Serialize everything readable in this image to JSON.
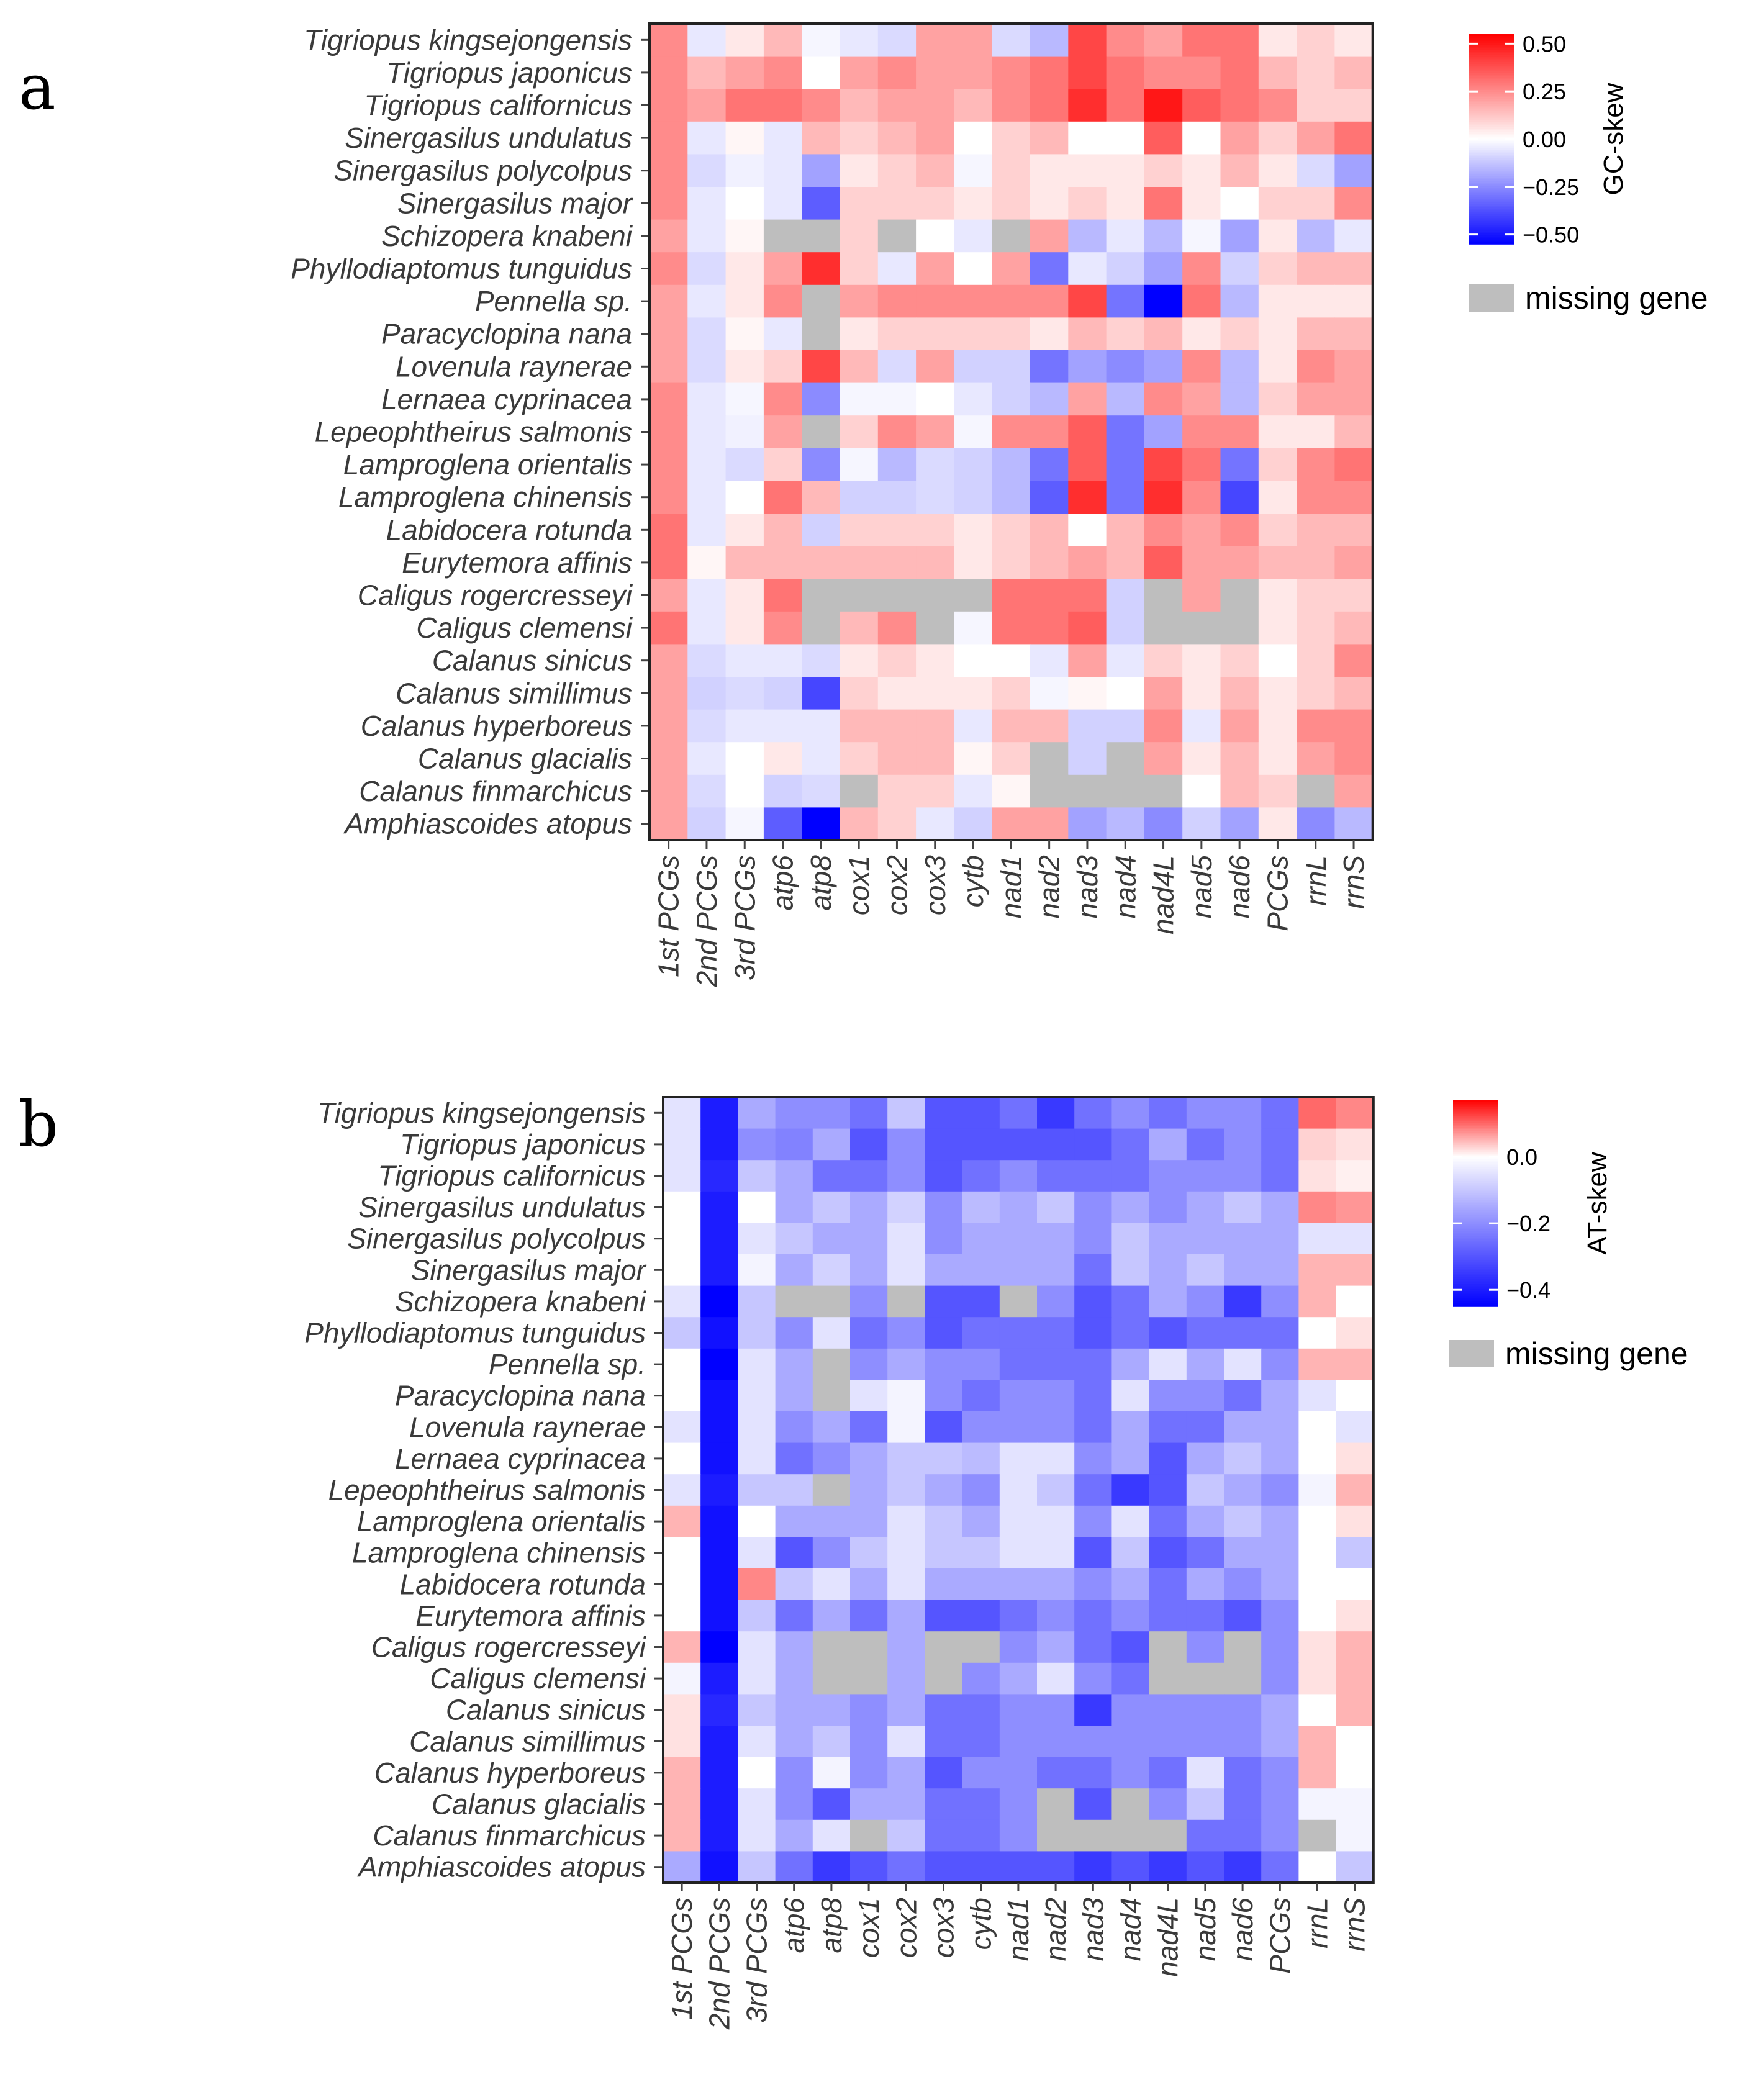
{
  "chart_data": [
    {
      "type": "heatmap",
      "panel_label": "a",
      "legend_title": "GC-skew",
      "missing_label": "missing gene",
      "colors": {
        "low": "#0000ff",
        "mid": "#ffffff",
        "high": "#ff0000",
        "missing": "#bebebe"
      },
      "scale_limits": [
        -0.55,
        0.55
      ],
      "ticks": [
        0.5,
        0.25,
        0.0,
        -0.25,
        -0.5
      ],
      "tick_labels": [
        "0.50",
        "0.25",
        "0.00",
        "−0.25",
        "−0.50"
      ],
      "columns": [
        "1st PCGs",
        "2nd PCGs",
        "3rd PCGs",
        "atp6",
        "atp8",
        "cox1",
        "cox2",
        "cox3",
        "cytb",
        "nad1",
        "nad2",
        "nad3",
        "nad4",
        "nad4L",
        "nad5",
        "nad6",
        "PCGs",
        "rrnL",
        "rrnS"
      ],
      "rows": [
        "Tigriopus kingsejongensis",
        "Tigriopus japonicus",
        "Tigriopus californicus",
        "Sinergasilus undulatus",
        "Sinergasilus polycolpus",
        "Sinergasilus major",
        "Schizopera knabeni",
        "Phyllodiaptomus tunguidus",
        "Pennella sp.",
        "Paracyclopina nana",
        "Lovenula raynerae",
        "Lernaea cyprinacea",
        "Lepeophtheirus salmonis",
        "Lamproglena orientalis",
        "Lamproglena chinensis",
        "Labidocera rotunda",
        "Eurytemora affinis",
        "Caligus rogercresseyi",
        "Caligus clemensi",
        "Calanus sinicus",
        "Calanus simillimus",
        "Calanus hyperboreus",
        "Calanus glacialis",
        "Calanus finmarchicus",
        "Amphiascoides atopus"
      ],
      "values": [
        [
          0.25,
          -0.05,
          0.05,
          0.15,
          -0.02,
          -0.05,
          -0.08,
          0.2,
          0.2,
          -0.08,
          -0.15,
          0.4,
          0.25,
          0.2,
          0.3,
          0.3,
          0.05,
          0.1,
          0.05
        ],
        [
          0.25,
          0.15,
          0.2,
          0.25,
          0.0,
          0.2,
          0.25,
          0.2,
          0.2,
          0.25,
          0.3,
          0.4,
          0.3,
          0.25,
          0.25,
          0.3,
          0.15,
          0.1,
          0.15
        ],
        [
          0.25,
          0.2,
          0.3,
          0.3,
          0.25,
          0.15,
          0.2,
          0.2,
          0.15,
          0.25,
          0.3,
          0.45,
          0.3,
          0.5,
          0.35,
          0.3,
          0.25,
          0.1,
          0.1
        ],
        [
          0.25,
          -0.05,
          0.02,
          -0.05,
          0.15,
          0.1,
          0.15,
          0.2,
          0.0,
          0.1,
          0.15,
          0.0,
          0.0,
          0.35,
          0.0,
          0.2,
          0.1,
          0.2,
          0.3
        ],
        [
          0.25,
          -0.08,
          -0.03,
          -0.05,
          -0.2,
          0.05,
          0.1,
          0.15,
          -0.02,
          0.1,
          0.05,
          0.05,
          0.05,
          0.1,
          0.05,
          0.15,
          0.05,
          -0.08,
          -0.2
        ],
        [
          0.25,
          -0.05,
          0.0,
          -0.05,
          -0.35,
          0.1,
          0.1,
          0.1,
          0.05,
          0.1,
          0.05,
          0.1,
          0.05,
          0.3,
          0.05,
          0.0,
          0.1,
          0.1,
          0.25
        ],
        [
          0.2,
          -0.05,
          0.02,
          null,
          null,
          0.1,
          null,
          0.0,
          -0.05,
          null,
          0.2,
          -0.15,
          -0.05,
          -0.15,
          -0.02,
          -0.2,
          0.05,
          -0.15,
          -0.05
        ],
        [
          0.25,
          -0.08,
          0.05,
          0.2,
          0.45,
          0.1,
          -0.05,
          0.2,
          0.0,
          0.2,
          -0.3,
          -0.05,
          -0.1,
          -0.2,
          0.25,
          -0.1,
          0.1,
          0.15,
          0.15
        ],
        [
          0.2,
          -0.05,
          0.05,
          0.25,
          null,
          0.2,
          0.25,
          0.25,
          0.25,
          0.25,
          0.25,
          0.4,
          -0.3,
          -0.55,
          0.3,
          -0.15,
          0.05,
          0.05,
          0.05
        ],
        [
          0.2,
          -0.08,
          0.02,
          -0.05,
          null,
          0.05,
          0.1,
          0.1,
          0.1,
          0.1,
          0.05,
          0.15,
          0.1,
          0.15,
          0.05,
          0.1,
          0.05,
          0.15,
          0.15
        ],
        [
          0.2,
          -0.08,
          0.05,
          0.1,
          0.4,
          0.15,
          -0.08,
          0.2,
          -0.1,
          -0.1,
          -0.3,
          -0.2,
          -0.25,
          -0.2,
          0.25,
          -0.15,
          0.05,
          0.25,
          0.2
        ],
        [
          0.25,
          -0.05,
          -0.02,
          0.25,
          -0.25,
          -0.02,
          -0.02,
          0.0,
          -0.05,
          -0.1,
          -0.15,
          0.2,
          -0.15,
          0.25,
          0.2,
          -0.15,
          0.1,
          0.2,
          0.2
        ],
        [
          0.25,
          -0.05,
          -0.03,
          0.2,
          null,
          0.1,
          0.25,
          0.2,
          -0.02,
          0.25,
          0.25,
          0.35,
          -0.3,
          -0.2,
          0.25,
          0.25,
          0.05,
          0.05,
          0.15
        ],
        [
          0.25,
          -0.05,
          -0.08,
          0.1,
          -0.25,
          -0.02,
          -0.15,
          -0.08,
          -0.1,
          -0.15,
          -0.3,
          0.35,
          -0.3,
          0.4,
          0.3,
          -0.3,
          0.1,
          0.25,
          0.3
        ],
        [
          0.25,
          -0.05,
          0.0,
          0.3,
          0.15,
          -0.1,
          -0.1,
          -0.08,
          -0.1,
          -0.15,
          -0.35,
          0.45,
          -0.3,
          0.45,
          0.25,
          -0.4,
          0.05,
          0.25,
          0.25
        ],
        [
          0.3,
          -0.05,
          0.05,
          0.15,
          -0.1,
          0.1,
          0.1,
          0.1,
          0.05,
          0.1,
          0.15,
          0.0,
          0.15,
          0.25,
          0.2,
          0.25,
          0.1,
          0.15,
          0.15
        ],
        [
          0.3,
          0.02,
          0.15,
          0.15,
          0.15,
          0.15,
          0.15,
          0.15,
          0.05,
          0.1,
          0.15,
          0.2,
          0.15,
          0.35,
          0.2,
          0.2,
          0.15,
          0.15,
          0.2
        ],
        [
          0.2,
          -0.05,
          0.05,
          0.3,
          null,
          null,
          null,
          null,
          null,
          0.3,
          0.3,
          0.3,
          -0.1,
          null,
          0.2,
          null,
          0.05,
          0.1,
          0.1
        ],
        [
          0.3,
          -0.05,
          0.05,
          0.25,
          null,
          0.15,
          0.25,
          null,
          -0.02,
          0.3,
          0.3,
          0.35,
          -0.1,
          null,
          null,
          null,
          0.05,
          0.1,
          0.15
        ],
        [
          0.2,
          -0.08,
          -0.05,
          -0.05,
          -0.08,
          0.05,
          0.1,
          0.05,
          0.0,
          0.0,
          -0.05,
          0.2,
          -0.05,
          0.1,
          0.05,
          0.1,
          0.0,
          0.1,
          0.25
        ],
        [
          0.2,
          -0.1,
          -0.08,
          -0.1,
          -0.4,
          0.1,
          0.05,
          0.05,
          0.05,
          0.1,
          -0.02,
          0.02,
          0.0,
          0.2,
          0.05,
          0.15,
          0.05,
          0.1,
          0.15
        ],
        [
          0.2,
          -0.08,
          -0.05,
          -0.05,
          -0.05,
          0.15,
          0.15,
          0.15,
          -0.05,
          0.15,
          0.15,
          -0.1,
          -0.1,
          0.25,
          -0.05,
          0.2,
          0.05,
          0.25,
          0.25
        ],
        [
          0.2,
          -0.05,
          0.0,
          0.05,
          -0.05,
          0.1,
          0.15,
          0.15,
          0.02,
          0.1,
          null,
          -0.1,
          null,
          0.2,
          0.05,
          0.15,
          0.05,
          0.2,
          0.25
        ],
        [
          0.2,
          -0.08,
          0.0,
          -0.1,
          -0.08,
          null,
          0.1,
          0.1,
          -0.05,
          0.02,
          null,
          null,
          null,
          null,
          0.0,
          0.15,
          0.1,
          null,
          0.2
        ],
        [
          0.2,
          -0.1,
          -0.02,
          -0.35,
          -0.6,
          0.15,
          0.1,
          -0.05,
          -0.1,
          0.2,
          0.2,
          -0.2,
          -0.15,
          -0.25,
          -0.1,
          -0.2,
          0.05,
          -0.25,
          -0.15
        ]
      ]
    },
    {
      "type": "heatmap",
      "panel_label": "b",
      "legend_title": "AT-skew",
      "missing_label": "missing gene",
      "colors": {
        "low": "#0000ff",
        "mid": "#ffffff",
        "high": "#ff0000",
        "missing": "#bebebe"
      },
      "scale_limits": [
        -0.45,
        0.17
      ],
      "ticks": [
        0.0,
        -0.2,
        -0.4
      ],
      "tick_labels": [
        "0.0",
        "−0.2",
        "−0.4"
      ],
      "columns": [
        "1st PCGs",
        "2nd PCGs",
        "3rd PCGs",
        "atp6",
        "atp8",
        "cox1",
        "cox2",
        "cox3",
        "cytb",
        "nad1",
        "nad2",
        "nad3",
        "nad4",
        "nad4L",
        "nad5",
        "nad6",
        "PCGs",
        "rrnL",
        "rrnS"
      ],
      "rows": [
        "Tigriopus kingsejongensis",
        "Tigriopus japonicus",
        "Tigriopus californicus",
        "Sinergasilus undulatus",
        "Sinergasilus polycolpus",
        "Sinergasilus major",
        "Schizopera knabeni",
        "Phyllodiaptomus tunguidus",
        "Pennella sp.",
        "Paracyclopina nana",
        "Lovenula raynerae",
        "Lernaea cyprinacea",
        "Lepeophtheirus salmonis",
        "Lamproglena orientalis",
        "Lamproglena chinensis",
        "Labidocera rotunda",
        "Eurytemora affinis",
        "Caligus rogercresseyi",
        "Caligus clemensi",
        "Calanus sinicus",
        "Calanus simillimus",
        "Calanus hyperboreus",
        "Calanus glacialis",
        "Calanus finmarchicus",
        "Amphiascoides atopus"
      ],
      "values": [
        [
          -0.05,
          -0.4,
          -0.15,
          -0.2,
          -0.2,
          -0.25,
          -0.1,
          -0.3,
          -0.3,
          -0.25,
          -0.35,
          -0.25,
          -0.2,
          -0.25,
          -0.2,
          -0.2,
          -0.25,
          0.1,
          0.08
        ],
        [
          -0.05,
          -0.4,
          -0.2,
          -0.22,
          -0.15,
          -0.3,
          -0.2,
          -0.3,
          -0.3,
          -0.3,
          -0.3,
          -0.3,
          -0.25,
          -0.15,
          -0.25,
          -0.2,
          -0.25,
          0.03,
          0.02
        ],
        [
          -0.05,
          -0.38,
          -0.1,
          -0.15,
          -0.25,
          -0.25,
          -0.2,
          -0.3,
          -0.25,
          -0.2,
          -0.25,
          -0.25,
          -0.25,
          -0.2,
          -0.2,
          -0.2,
          -0.25,
          0.02,
          0.01
        ],
        [
          0.0,
          -0.4,
          0.0,
          -0.15,
          -0.1,
          -0.15,
          -0.08,
          -0.2,
          -0.12,
          -0.15,
          -0.1,
          -0.2,
          -0.15,
          -0.2,
          -0.15,
          -0.1,
          -0.15,
          0.08,
          0.07
        ],
        [
          0.0,
          -0.4,
          -0.05,
          -0.1,
          -0.15,
          -0.15,
          -0.05,
          -0.2,
          -0.15,
          -0.15,
          -0.15,
          -0.2,
          -0.1,
          -0.15,
          -0.15,
          -0.15,
          -0.15,
          -0.05,
          -0.05
        ],
        [
          0.0,
          -0.4,
          -0.02,
          -0.15,
          -0.08,
          -0.15,
          -0.05,
          -0.15,
          -0.15,
          -0.15,
          -0.15,
          -0.25,
          -0.1,
          -0.15,
          -0.1,
          -0.15,
          -0.15,
          0.05,
          0.05
        ],
        [
          -0.05,
          -0.45,
          -0.1,
          null,
          null,
          -0.2,
          null,
          -0.3,
          -0.3,
          null,
          -0.2,
          -0.3,
          -0.25,
          -0.15,
          -0.2,
          -0.35,
          -0.2,
          0.05,
          0.0
        ],
        [
          -0.1,
          -0.42,
          -0.1,
          -0.2,
          -0.05,
          -0.25,
          -0.2,
          -0.3,
          -0.25,
          -0.25,
          -0.25,
          -0.3,
          -0.25,
          -0.3,
          -0.25,
          -0.25,
          -0.25,
          0.0,
          0.02
        ],
        [
          0.0,
          -0.45,
          -0.05,
          -0.15,
          null,
          -0.2,
          -0.15,
          -0.2,
          -0.2,
          -0.25,
          -0.25,
          -0.25,
          -0.15,
          -0.05,
          -0.15,
          -0.05,
          -0.2,
          0.05,
          0.05
        ],
        [
          0.0,
          -0.42,
          -0.05,
          -0.15,
          null,
          -0.05,
          -0.02,
          -0.2,
          -0.25,
          -0.2,
          -0.2,
          -0.25,
          -0.05,
          -0.2,
          -0.2,
          -0.25,
          -0.15,
          -0.05,
          0.0
        ],
        [
          -0.05,
          -0.42,
          -0.05,
          -0.2,
          -0.15,
          -0.25,
          -0.02,
          -0.3,
          -0.2,
          -0.2,
          -0.2,
          -0.25,
          -0.15,
          -0.25,
          -0.25,
          -0.15,
          -0.15,
          0.0,
          -0.05
        ],
        [
          0.0,
          -0.42,
          -0.05,
          -0.25,
          -0.2,
          -0.15,
          -0.1,
          -0.1,
          -0.12,
          -0.05,
          -0.05,
          -0.2,
          -0.15,
          -0.3,
          -0.15,
          -0.1,
          -0.15,
          0.0,
          0.02
        ],
        [
          -0.05,
          -0.4,
          -0.1,
          -0.1,
          null,
          -0.15,
          -0.1,
          -0.15,
          -0.2,
          -0.05,
          -0.1,
          -0.25,
          -0.35,
          -0.3,
          -0.1,
          -0.15,
          -0.2,
          -0.02,
          0.05
        ],
        [
          0.05,
          -0.42,
          0.0,
          -0.15,
          -0.15,
          -0.15,
          -0.05,
          -0.1,
          -0.15,
          -0.05,
          -0.05,
          -0.2,
          -0.05,
          -0.25,
          -0.15,
          -0.1,
          -0.15,
          0.0,
          0.02
        ],
        [
          0.0,
          -0.42,
          -0.05,
          -0.3,
          -0.2,
          -0.1,
          -0.05,
          -0.1,
          -0.1,
          -0.05,
          -0.05,
          -0.3,
          -0.1,
          -0.3,
          -0.25,
          -0.15,
          -0.15,
          0.0,
          -0.1
        ],
        [
          0.0,
          -0.42,
          0.08,
          -0.1,
          -0.05,
          -0.15,
          -0.05,
          -0.15,
          -0.15,
          -0.15,
          -0.15,
          -0.2,
          -0.15,
          -0.25,
          -0.15,
          -0.2,
          -0.15,
          0.0,
          0.0
        ],
        [
          0.0,
          -0.42,
          -0.1,
          -0.25,
          -0.15,
          -0.25,
          -0.15,
          -0.3,
          -0.3,
          -0.25,
          -0.2,
          -0.25,
          -0.2,
          -0.25,
          -0.25,
          -0.3,
          -0.2,
          0.0,
          0.02
        ],
        [
          0.05,
          -0.5,
          -0.05,
          -0.15,
          null,
          null,
          -0.15,
          null,
          null,
          -0.2,
          -0.15,
          -0.25,
          -0.3,
          null,
          -0.2,
          null,
          -0.2,
          0.02,
          0.05
        ],
        [
          -0.02,
          -0.4,
          -0.05,
          -0.15,
          null,
          null,
          -0.15,
          null,
          -0.2,
          -0.15,
          -0.05,
          -0.2,
          -0.25,
          null,
          null,
          null,
          -0.2,
          0.02,
          0.05
        ],
        [
          0.02,
          -0.38,
          -0.1,
          -0.15,
          -0.15,
          -0.2,
          -0.15,
          -0.25,
          -0.25,
          -0.2,
          -0.2,
          -0.35,
          -0.2,
          -0.2,
          -0.2,
          -0.2,
          -0.15,
          0.0,
          0.05
        ],
        [
          0.02,
          -0.4,
          -0.05,
          -0.15,
          -0.1,
          -0.2,
          -0.05,
          -0.25,
          -0.25,
          -0.2,
          -0.2,
          -0.2,
          -0.2,
          -0.2,
          -0.2,
          -0.2,
          -0.15,
          0.05,
          0.0
        ],
        [
          0.05,
          -0.4,
          0.0,
          -0.2,
          -0.02,
          -0.2,
          -0.15,
          -0.3,
          -0.2,
          -0.2,
          -0.25,
          -0.25,
          -0.2,
          -0.25,
          -0.05,
          -0.25,
          -0.2,
          0.05,
          0.0
        ],
        [
          0.05,
          -0.4,
          -0.05,
          -0.2,
          -0.3,
          -0.15,
          -0.15,
          -0.25,
          -0.25,
          -0.2,
          null,
          -0.3,
          null,
          -0.2,
          -0.1,
          -0.25,
          -0.2,
          -0.02,
          -0.02
        ],
        [
          0.05,
          -0.4,
          -0.05,
          -0.15,
          -0.05,
          null,
          -0.1,
          -0.25,
          -0.25,
          -0.2,
          null,
          null,
          null,
          null,
          -0.25,
          -0.25,
          -0.2,
          null,
          -0.02
        ],
        [
          -0.15,
          -0.42,
          -0.1,
          -0.25,
          -0.35,
          -0.3,
          -0.25,
          -0.3,
          -0.3,
          -0.3,
          -0.3,
          -0.35,
          -0.3,
          -0.35,
          -0.3,
          -0.35,
          -0.25,
          0.0,
          -0.1
        ]
      ]
    }
  ]
}
